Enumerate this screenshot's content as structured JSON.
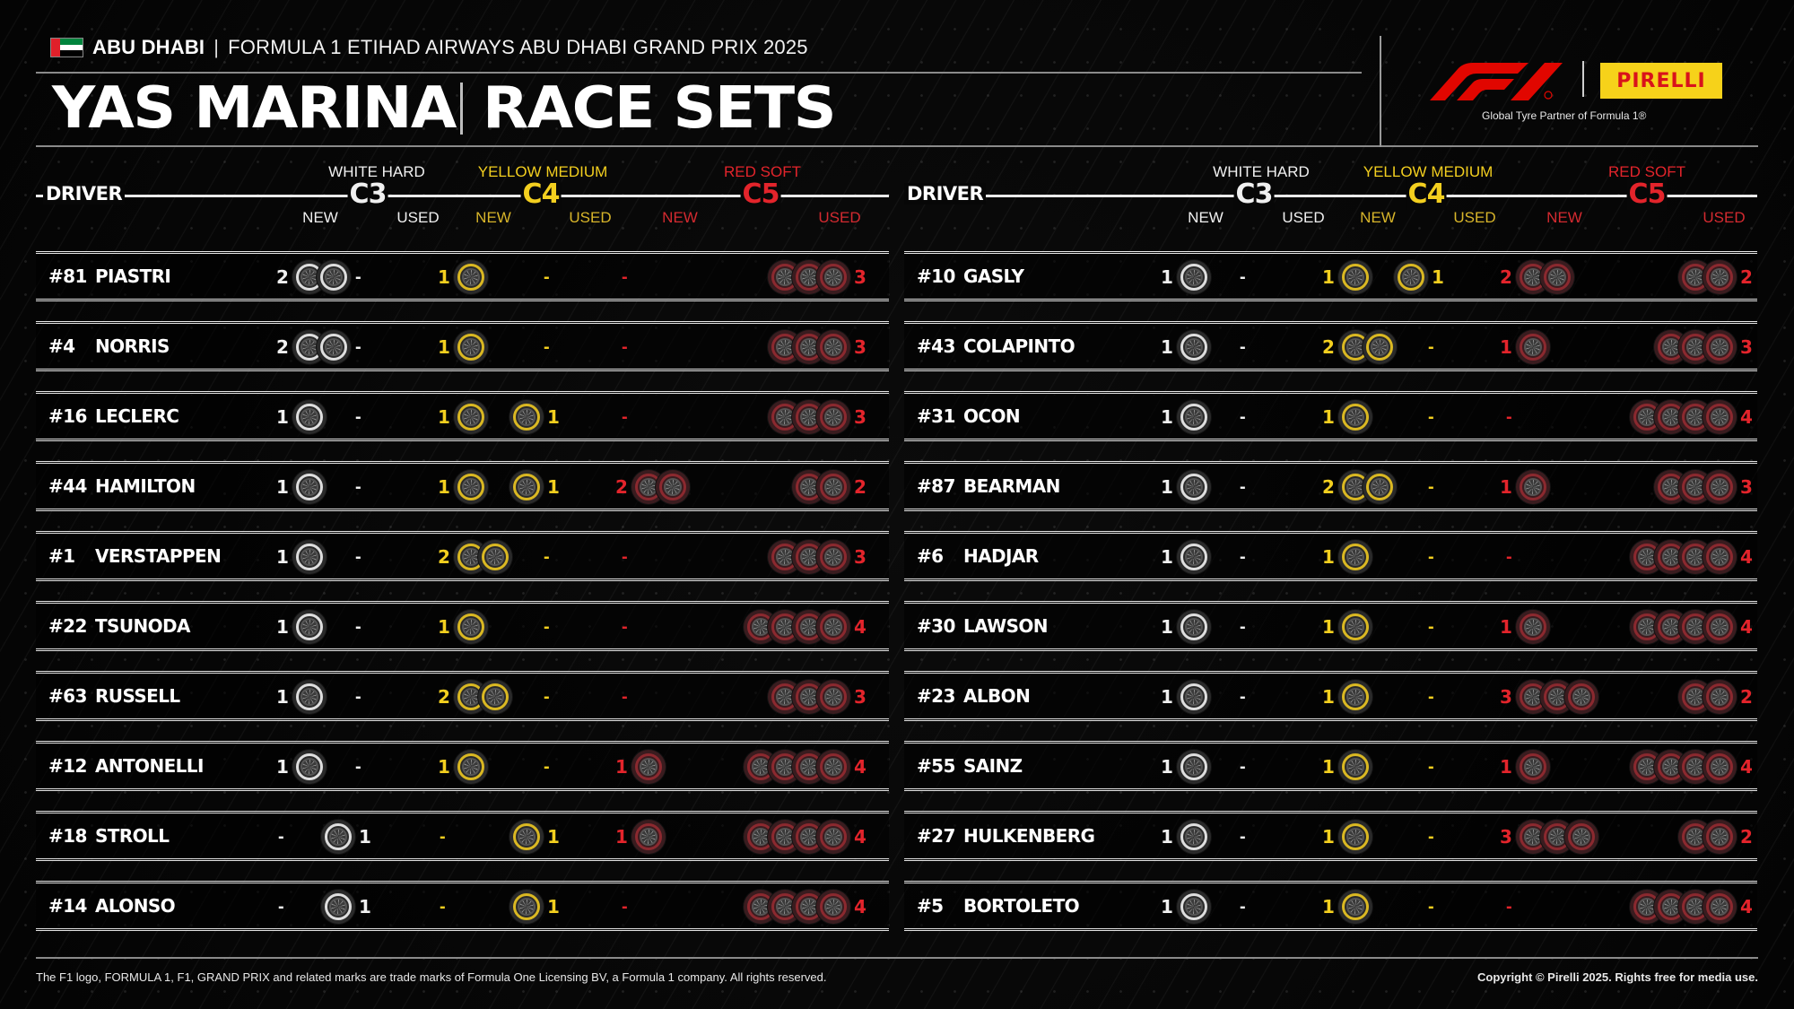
{
  "header": {
    "flag": "uae-flag",
    "place": "ABU DHABI",
    "separator": "|",
    "event": "FORMULA 1 ETIHAD AIRWAYS ABU DHABI GRAND PRIX 2025",
    "title_left": "YAS MARINA",
    "title_right": "RACE SETS",
    "partner_text": "Global Tyre Partner of Formula 1®",
    "pirelli_label": "PIRELLI",
    "colors": {
      "hard": "#f0f0f0",
      "medium": "#f3cf1f",
      "soft": "#e3242b",
      "f1_red": "#e10600",
      "pirelli_yellow": "#f6d21a"
    }
  },
  "columns": {
    "driver_label": "DRIVER",
    "hard": {
      "name": "WHITE HARD",
      "code": "C3"
    },
    "medium": {
      "name": "YELLOW MEDIUM",
      "code": "C4"
    },
    "soft": {
      "name": "RED SOFT",
      "code": "C5"
    },
    "new_label": "NEW",
    "used_label": "USED"
  },
  "left_table": [
    {
      "number": "#81",
      "driver": "PIASTRI",
      "hard_new": 2,
      "hard_used": 0,
      "medium_new": 1,
      "medium_used": 0,
      "soft_new": 0,
      "soft_used": 3
    },
    {
      "number": "#4",
      "driver": "NORRIS",
      "hard_new": 2,
      "hard_used": 0,
      "medium_new": 1,
      "medium_used": 0,
      "soft_new": 0,
      "soft_used": 3
    },
    {
      "number": "#16",
      "driver": "LECLERC",
      "hard_new": 1,
      "hard_used": 0,
      "medium_new": 1,
      "medium_used": 1,
      "soft_new": 0,
      "soft_used": 3
    },
    {
      "number": "#44",
      "driver": "HAMILTON",
      "hard_new": 1,
      "hard_used": 0,
      "medium_new": 1,
      "medium_used": 1,
      "soft_new": 2,
      "soft_used": 2
    },
    {
      "number": "#1",
      "driver": "VERSTAPPEN",
      "hard_new": 1,
      "hard_used": 0,
      "medium_new": 2,
      "medium_used": 0,
      "soft_new": 0,
      "soft_used": 3
    },
    {
      "number": "#22",
      "driver": "TSUNODA",
      "hard_new": 1,
      "hard_used": 0,
      "medium_new": 1,
      "medium_used": 0,
      "soft_new": 0,
      "soft_used": 4
    },
    {
      "number": "#63",
      "driver": "RUSSELL",
      "hard_new": 1,
      "hard_used": 0,
      "medium_new": 2,
      "medium_used": 0,
      "soft_new": 0,
      "soft_used": 3
    },
    {
      "number": "#12",
      "driver": "ANTONELLI",
      "hard_new": 1,
      "hard_used": 0,
      "medium_new": 1,
      "medium_used": 0,
      "soft_new": 1,
      "soft_used": 4
    },
    {
      "number": "#18",
      "driver": "STROLL",
      "hard_new": 0,
      "hard_used": 1,
      "medium_new": 0,
      "medium_used": 1,
      "soft_new": 1,
      "soft_used": 4
    },
    {
      "number": "#14",
      "driver": "ALONSO",
      "hard_new": 0,
      "hard_used": 1,
      "medium_new": 0,
      "medium_used": 1,
      "soft_new": 0,
      "soft_used": 4
    }
  ],
  "right_table": [
    {
      "number": "#10",
      "driver": "GASLY",
      "hard_new": 1,
      "hard_used": 0,
      "medium_new": 1,
      "medium_used": 1,
      "soft_new": 2,
      "soft_used": 2
    },
    {
      "number": "#43",
      "driver": "COLAPINTO",
      "hard_new": 1,
      "hard_used": 0,
      "medium_new": 2,
      "medium_used": 0,
      "soft_new": 1,
      "soft_used": 3
    },
    {
      "number": "#31",
      "driver": "OCON",
      "hard_new": 1,
      "hard_used": 0,
      "medium_new": 1,
      "medium_used": 0,
      "soft_new": 0,
      "soft_used": 4
    },
    {
      "number": "#87",
      "driver": "BEARMAN",
      "hard_new": 1,
      "hard_used": 0,
      "medium_new": 2,
      "medium_used": 0,
      "soft_new": 1,
      "soft_used": 3
    },
    {
      "number": "#6",
      "driver": "HADJAR",
      "hard_new": 1,
      "hard_used": 0,
      "medium_new": 1,
      "medium_used": 0,
      "soft_new": 0,
      "soft_used": 4
    },
    {
      "number": "#30",
      "driver": "LAWSON",
      "hard_new": 1,
      "hard_used": 0,
      "medium_new": 1,
      "medium_used": 0,
      "soft_new": 1,
      "soft_used": 4
    },
    {
      "number": "#23",
      "driver": "ALBON",
      "hard_new": 1,
      "hard_used": 0,
      "medium_new": 1,
      "medium_used": 0,
      "soft_new": 3,
      "soft_used": 2
    },
    {
      "number": "#55",
      "driver": "SAINZ",
      "hard_new": 1,
      "hard_used": 0,
      "medium_new": 1,
      "medium_used": 0,
      "soft_new": 1,
      "soft_used": 4
    },
    {
      "number": "#27",
      "driver": "HULKENBERG",
      "hard_new": 1,
      "hard_used": 0,
      "medium_new": 1,
      "medium_used": 0,
      "soft_new": 3,
      "soft_used": 2
    },
    {
      "number": "#5",
      "driver": "BORTOLETO",
      "hard_new": 1,
      "hard_used": 0,
      "medium_new": 1,
      "medium_used": 0,
      "soft_new": 0,
      "soft_used": 4
    }
  ],
  "zero_symbol": "-",
  "footer": {
    "trademark": "The F1 logo, FORMULA 1, F1, GRAND PRIX and related marks are trade marks of Formula One Licensing BV, a Formula 1 company. All rights reserved.",
    "copyright": "Copyright © Pirelli 2025. Rights free for media use."
  }
}
